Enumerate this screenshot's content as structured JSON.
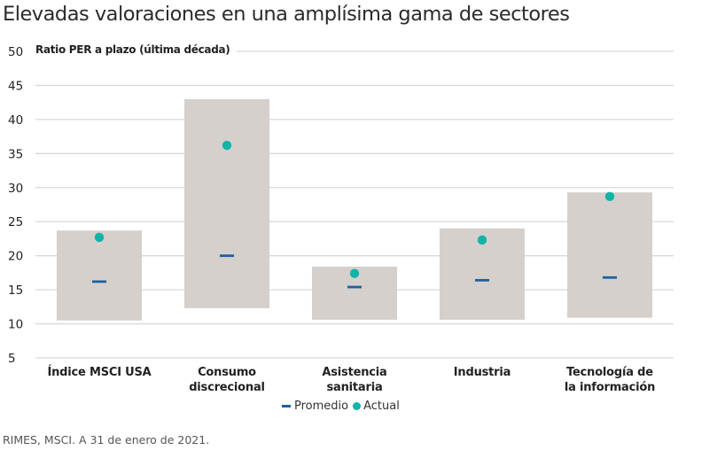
{
  "title": "Elevadas valoraciones en una amplísima gama de sectores",
  "source": "RIMES, MSCI. A 31 de enero de 2021.",
  "colors": {
    "range_bar": "#d5d0cc",
    "average": "#1f5fa0",
    "current": "#12b3a8",
    "grid": "#d9d9d9"
  },
  "chart_data": {
    "type": "range-bar",
    "title": "Elevadas valoraciones en una amplísima gama de sectores",
    "ylabel": "Ratio PER a plazo (última década)",
    "xlabel": "",
    "ylim": [
      5,
      50
    ],
    "yticks": [
      50,
      45,
      40,
      35,
      30,
      25,
      20,
      15,
      10,
      5
    ],
    "grid": true,
    "legend_position": "bottom-center",
    "legend": [
      "Promedio",
      "Actual"
    ],
    "categories": [
      "Índice MSCI USA",
      "Consumo discrecional",
      "Asistencia sanitaria",
      "Industria",
      "Tecnología de la información"
    ],
    "category_label_lines": [
      [
        "Índice MSCI USA"
      ],
      [
        "Consumo",
        "discrecional"
      ],
      [
        "Asistencia",
        "sanitaria"
      ],
      [
        "Industria"
      ],
      [
        "Tecnología de",
        "la información"
      ]
    ],
    "series": [
      {
        "name": "Rango (mín.)",
        "values": [
          10.5,
          12.3,
          10.6,
          10.6,
          10.9
        ]
      },
      {
        "name": "Rango (máx.)",
        "values": [
          23.7,
          43.0,
          18.4,
          24.0,
          29.3
        ]
      },
      {
        "name": "Promedio",
        "values": [
          16.2,
          20.0,
          15.4,
          16.4,
          16.8
        ]
      },
      {
        "name": "Actual",
        "values": [
          22.7,
          36.2,
          17.4,
          22.3,
          28.7
        ]
      }
    ]
  }
}
